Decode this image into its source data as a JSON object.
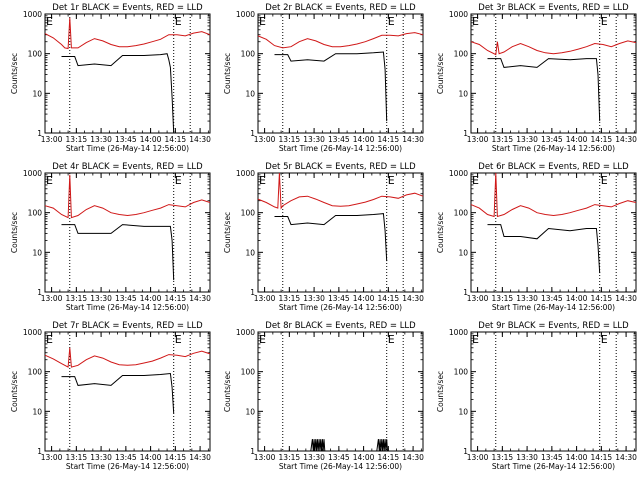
{
  "chart_data": [
    {
      "type": "line",
      "title": "Det 1r BLACK = Events, RED = LLD",
      "xlabel": "Start Time (26-May-14 12:56:00)",
      "ylabel": "Counts/sec",
      "yscale": "log",
      "ylim": [
        1,
        1000
      ],
      "xlim_minutes": [
        0,
        100
      ],
      "xticks": [
        "13:00",
        "13:15",
        "13:30",
        "13:45",
        "14:00",
        "14:15",
        "14:30"
      ],
      "yticks": [
        "1",
        "10",
        "100",
        "1000"
      ],
      "markers": [
        {
          "label": "E",
          "minute": 0
        },
        {
          "label": "E",
          "minute": 78
        }
      ],
      "dotted_lines_minutes": [
        15,
        78,
        88
      ],
      "series": [
        {
          "name": "Events",
          "color": "#000000",
          "x": [
            10,
            18,
            20,
            30,
            40,
            47,
            60,
            70,
            74,
            75,
            76,
            77,
            78
          ],
          "y": [
            85,
            85,
            50,
            55,
            50,
            90,
            90,
            95,
            100,
            70,
            45,
            8,
            1
          ]
        },
        {
          "name": "LLD",
          "color": "#d01818",
          "x": [
            0,
            5,
            10,
            12,
            14,
            15,
            16,
            20,
            25,
            30,
            35,
            40,
            45,
            50,
            55,
            60,
            65,
            70,
            75,
            80,
            85,
            90,
            95,
            100
          ],
          "y": [
            320,
            250,
            170,
            140,
            135,
            800,
            140,
            140,
            190,
            240,
            210,
            170,
            150,
            150,
            160,
            175,
            200,
            230,
            300,
            300,
            280,
            330,
            360,
            300
          ]
        }
      ]
    },
    {
      "type": "line",
      "title": "Det 2r BLACK = Events, RED = LLD",
      "xlabel": "Start Time (26-May-14 12:56:00)",
      "ylabel": "Counts/sec",
      "yscale": "log",
      "ylim": [
        1,
        1000
      ],
      "xlim_minutes": [
        0,
        100
      ],
      "xticks": [
        "13:00",
        "13:15",
        "13:30",
        "13:45",
        "14:00",
        "14:15",
        "14:30"
      ],
      "yticks": [
        "1",
        "10",
        "100",
        "1000"
      ],
      "markers": [
        {
          "label": "E",
          "minute": 0
        },
        {
          "label": "E",
          "minute": 78
        }
      ],
      "dotted_lines_minutes": [
        15,
        78,
        88
      ],
      "series": [
        {
          "name": "Events",
          "color": "#000000",
          "x": [
            10,
            18,
            20,
            30,
            40,
            47,
            60,
            70,
            76,
            77,
            78
          ],
          "y": [
            95,
            95,
            65,
            70,
            65,
            100,
            100,
            105,
            110,
            40,
            2
          ]
        },
        {
          "name": "LLD",
          "color": "#d01818",
          "x": [
            0,
            5,
            10,
            15,
            20,
            25,
            30,
            35,
            40,
            45,
            50,
            55,
            60,
            65,
            70,
            75,
            80,
            85,
            90,
            95,
            100
          ],
          "y": [
            280,
            230,
            160,
            140,
            150,
            200,
            240,
            210,
            170,
            150,
            150,
            160,
            175,
            200,
            240,
            290,
            290,
            280,
            320,
            340,
            300
          ]
        }
      ]
    },
    {
      "type": "line",
      "title": "Det 3r BLACK = Events, RED = LLD",
      "xlabel": "Start Time (26-May-14 12:56:00)",
      "ylabel": "Counts/sec",
      "yscale": "log",
      "ylim": [
        1,
        1000
      ],
      "xlim_minutes": [
        0,
        100
      ],
      "xticks": [
        "13:00",
        "13:15",
        "13:30",
        "13:45",
        "14:00",
        "14:15",
        "14:30"
      ],
      "yticks": [
        "1",
        "10",
        "100",
        "1000"
      ],
      "markers": [
        {
          "label": "E",
          "minute": 0
        },
        {
          "label": "E",
          "minute": 78
        }
      ],
      "dotted_lines_minutes": [
        15,
        78,
        88
      ],
      "series": [
        {
          "name": "Events",
          "color": "#000000",
          "x": [
            10,
            18,
            20,
            30,
            40,
            47,
            60,
            70,
            76,
            77,
            78
          ],
          "y": [
            75,
            75,
            45,
            50,
            45,
            75,
            70,
            75,
            75,
            30,
            2
          ]
        },
        {
          "name": "LLD",
          "color": "#d01818",
          "x": [
            0,
            5,
            10,
            15,
            16,
            17,
            20,
            25,
            30,
            35,
            40,
            45,
            50,
            55,
            60,
            65,
            70,
            75,
            80,
            85,
            90,
            95,
            100
          ],
          "y": [
            200,
            170,
            120,
            95,
            200,
            100,
            110,
            150,
            180,
            150,
            120,
            105,
            100,
            105,
            115,
            130,
            150,
            180,
            170,
            150,
            180,
            210,
            190
          ]
        }
      ]
    },
    {
      "type": "line",
      "title": "Det 4r BLACK = Events, RED = LLD",
      "xlabel": "Start Time (26-May-14 12:56:00)",
      "ylabel": "Counts/sec",
      "yscale": "log",
      "ylim": [
        1,
        1000
      ],
      "xlim_minutes": [
        0,
        100
      ],
      "xticks": [
        "13:00",
        "13:15",
        "13:30",
        "13:45",
        "14:00",
        "14:15",
        "14:30"
      ],
      "yticks": [
        "1",
        "10",
        "100",
        "1000"
      ],
      "markers": [
        {
          "label": "E",
          "minute": 0
        },
        {
          "label": "E",
          "minute": 78
        }
      ],
      "dotted_lines_minutes": [
        15,
        78,
        88
      ],
      "series": [
        {
          "name": "Events",
          "color": "#000000",
          "x": [
            10,
            18,
            20,
            30,
            40,
            47,
            60,
            70,
            76,
            77,
            78
          ],
          "y": [
            50,
            50,
            30,
            30,
            30,
            50,
            45,
            45,
            45,
            20,
            2
          ]
        },
        {
          "name": "LLD",
          "color": "#d01818",
          "x": [
            0,
            5,
            10,
            14,
            15,
            16,
            20,
            25,
            30,
            35,
            40,
            45,
            50,
            55,
            60,
            65,
            70,
            75,
            80,
            85,
            90,
            95,
            100
          ],
          "y": [
            150,
            130,
            90,
            75,
            900,
            75,
            85,
            120,
            150,
            130,
            100,
            90,
            85,
            90,
            100,
            115,
            130,
            160,
            150,
            140,
            180,
            210,
            180
          ]
        }
      ]
    },
    {
      "type": "line",
      "title": "Det 5r BLACK = Events, RED = LLD",
      "xlabel": "Start Time (26-May-14 12:56:00)",
      "ylabel": "Counts/sec",
      "yscale": "log",
      "ylim": [
        1,
        1000
      ],
      "xlim_minutes": [
        0,
        100
      ],
      "xticks": [
        "13:00",
        "13:15",
        "13:30",
        "13:45",
        "14:00",
        "14:15",
        "14:30"
      ],
      "yticks": [
        "1",
        "10",
        "100",
        "1000"
      ],
      "markers": [
        {
          "label": "E",
          "minute": 0
        },
        {
          "label": "E",
          "minute": 78
        }
      ],
      "dotted_lines_minutes": [
        15,
        78,
        88
      ],
      "series": [
        {
          "name": "Events",
          "color": "#000000",
          "x": [
            10,
            18,
            20,
            30,
            40,
            47,
            60,
            70,
            76,
            77,
            78
          ],
          "y": [
            80,
            80,
            50,
            55,
            50,
            85,
            85,
            90,
            95,
            35,
            6
          ]
        },
        {
          "name": "LLD",
          "color": "#d01818",
          "x": [
            0,
            5,
            10,
            12,
            13,
            14,
            15,
            20,
            25,
            30,
            35,
            40,
            45,
            50,
            55,
            60,
            65,
            70,
            75,
            80,
            85,
            90,
            95,
            100
          ],
          "y": [
            220,
            180,
            140,
            130,
            1000,
            130,
            150,
            200,
            250,
            260,
            220,
            180,
            150,
            145,
            150,
            165,
            185,
            215,
            260,
            250,
            230,
            280,
            310,
            260
          ]
        }
      ]
    },
    {
      "type": "line",
      "title": "Det 6r BLACK = Events, RED = LLD",
      "xlabel": "Start Time (26-May-14 12:56:00)",
      "ylabel": "Counts/sec",
      "yscale": "log",
      "ylim": [
        1,
        1000
      ],
      "xlim_minutes": [
        0,
        100
      ],
      "xticks": [
        "13:00",
        "13:15",
        "13:30",
        "13:45",
        "14:00",
        "14:15",
        "14:30"
      ],
      "yticks": [
        "1",
        "10",
        "100",
        "1000"
      ],
      "markers": [
        {
          "label": "E",
          "minute": 0
        },
        {
          "label": "E",
          "minute": 78
        }
      ],
      "dotted_lines_minutes": [
        15,
        78,
        88
      ],
      "series": [
        {
          "name": "Events",
          "color": "#000000",
          "x": [
            10,
            18,
            20,
            30,
            40,
            47,
            60,
            70,
            76,
            77,
            78
          ],
          "y": [
            50,
            50,
            25,
            25,
            22,
            40,
            35,
            40,
            40,
            15,
            3
          ]
        },
        {
          "name": "LLD",
          "color": "#d01818",
          "x": [
            0,
            5,
            10,
            14,
            15,
            16,
            20,
            25,
            30,
            35,
            40,
            45,
            50,
            55,
            60,
            65,
            70,
            75,
            80,
            85,
            90,
            95,
            100
          ],
          "y": [
            160,
            130,
            90,
            80,
            1000,
            80,
            90,
            120,
            150,
            130,
            100,
            90,
            85,
            90,
            100,
            115,
            130,
            160,
            150,
            140,
            170,
            200,
            180
          ]
        }
      ]
    },
    {
      "type": "line",
      "title": "Det 7r BLACK = Events, RED = LLD",
      "xlabel": "Start Time (26-May-14 12:56:00)",
      "ylabel": "Counts/sec",
      "yscale": "log",
      "ylim": [
        1,
        1000
      ],
      "xlim_minutes": [
        0,
        100
      ],
      "xticks": [
        "13:00",
        "13:15",
        "13:30",
        "13:45",
        "14:00",
        "14:15",
        "14:30"
      ],
      "yticks": [
        "1",
        "10",
        "100",
        "1000"
      ],
      "markers": [
        {
          "label": "E",
          "minute": 0
        },
        {
          "label": "E",
          "minute": 78
        }
      ],
      "dotted_lines_minutes": [
        15,
        78,
        88
      ],
      "series": [
        {
          "name": "Events",
          "color": "#000000",
          "x": [
            10,
            18,
            20,
            30,
            40,
            47,
            60,
            70,
            76,
            77,
            78
          ],
          "y": [
            75,
            75,
            45,
            50,
            45,
            80,
            80,
            85,
            90,
            40,
            9
          ]
        },
        {
          "name": "LLD",
          "color": "#d01818",
          "x": [
            0,
            5,
            10,
            14,
            15,
            16,
            20,
            25,
            30,
            35,
            40,
            45,
            50,
            55,
            60,
            65,
            70,
            75,
            80,
            85,
            90,
            95,
            100
          ],
          "y": [
            260,
            210,
            160,
            130,
            400,
            130,
            145,
            200,
            250,
            220,
            175,
            150,
            145,
            150,
            165,
            185,
            220,
            270,
            260,
            240,
            290,
            330,
            280
          ]
        }
      ]
    },
    {
      "type": "line",
      "title": "Det 8r BLACK = Events, RED = LLD",
      "xlabel": "Start Time (26-May-14 12:56:00)",
      "ylabel": "Counts/sec",
      "yscale": "log",
      "ylim": [
        1,
        1000
      ],
      "xlim_minutes": [
        0,
        100
      ],
      "xticks": [
        "13:00",
        "13:15",
        "13:30",
        "13:45",
        "14:00",
        "14:15",
        "14:30"
      ],
      "yticks": [
        "1",
        "10",
        "100",
        "1000"
      ],
      "markers": [
        {
          "label": "E",
          "minute": 0
        },
        {
          "label": "E",
          "minute": 78
        }
      ],
      "dotted_lines_minutes": [
        15,
        78,
        88
      ],
      "series": [
        {
          "name": "Events",
          "color": "#000000",
          "x": [
            32,
            33,
            33.5,
            34,
            34.5,
            35,
            35.5,
            36,
            36.5,
            37,
            37.5,
            38,
            38.5,
            39,
            39.5,
            40,
            40.5,
            41,
            72,
            73,
            73.5,
            74,
            74.5,
            75,
            75.5,
            76,
            76.5,
            77,
            77.5,
            78,
            78.5,
            79
          ],
          "y": [
            1,
            2,
            1,
            2,
            1,
            2,
            1,
            2,
            1,
            2,
            1,
            2,
            1,
            2,
            1,
            2,
            1,
            1,
            1,
            2,
            1,
            2,
            1,
            2,
            1,
            2,
            1,
            2,
            1,
            2,
            1,
            1
          ]
        }
      ]
    },
    {
      "type": "line",
      "title": "Det 9r BLACK = Events, RED = LLD",
      "xlabel": "Start Time (26-May-14 12:56:00)",
      "ylabel": "Counts/sec",
      "yscale": "log",
      "ylim": [
        1,
        1000
      ],
      "xlim_minutes": [
        0,
        100
      ],
      "xticks": [
        "13:00",
        "13:15",
        "13:30",
        "13:45",
        "14:00",
        "14:15",
        "14:30"
      ],
      "yticks": [
        "1",
        "10",
        "100",
        "1000"
      ],
      "markers": [
        {
          "label": "E",
          "minute": 0
        },
        {
          "label": "E",
          "minute": 78
        }
      ],
      "dotted_lines_minutes": [
        15,
        78,
        88
      ],
      "series": []
    }
  ]
}
